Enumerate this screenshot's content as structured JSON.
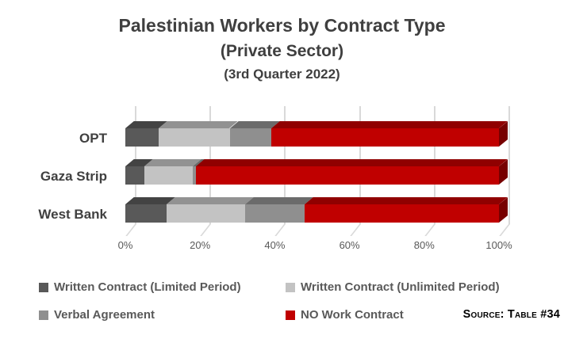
{
  "title": {
    "line1": "Palestinian Workers by Contract Type",
    "line2": "(Private Sector)",
    "line3": "(3rd Quarter 2022)"
  },
  "source_label": "Source: Table #34",
  "colors": {
    "background": "#ffffff",
    "title_text": "#3f3f3f",
    "category_text": "#404040",
    "axis_text": "#595959",
    "legend_text": "#595959",
    "source_text": "#000000",
    "gridline": "#d9d9d9"
  },
  "chart_data": {
    "type": "bar",
    "orientation": "horizontal",
    "stacked": true,
    "style": "3d",
    "title": "Palestinian Workers by Contract Type (Private Sector) (3rd Quarter 2022)",
    "categories": [
      "OPT",
      "Gaza Strip",
      "West Bank"
    ],
    "series": [
      {
        "name": "Written Contract (Limited Period)",
        "color": "#595959",
        "values": [
          9,
          5,
          11
        ]
      },
      {
        "name": "Written Contract (Unlimited Period)",
        "color": "#c3c3c3",
        "values": [
          19,
          13,
          21
        ]
      },
      {
        "name": "Verbal Agreement",
        "color": "#8f8f8f",
        "values": [
          11,
          1,
          16
        ]
      },
      {
        "name": "NO Work Contract",
        "color": "#c00000",
        "values": [
          61,
          81,
          52
        ]
      }
    ],
    "values_unit": "%",
    "x_ticks": [
      "0%",
      "20%",
      "40%",
      "60%",
      "80%",
      "100%"
    ],
    "xlim": [
      0,
      100
    ],
    "xlabel": "",
    "ylabel": "",
    "gridlines": true,
    "legend_position": "bottom"
  }
}
